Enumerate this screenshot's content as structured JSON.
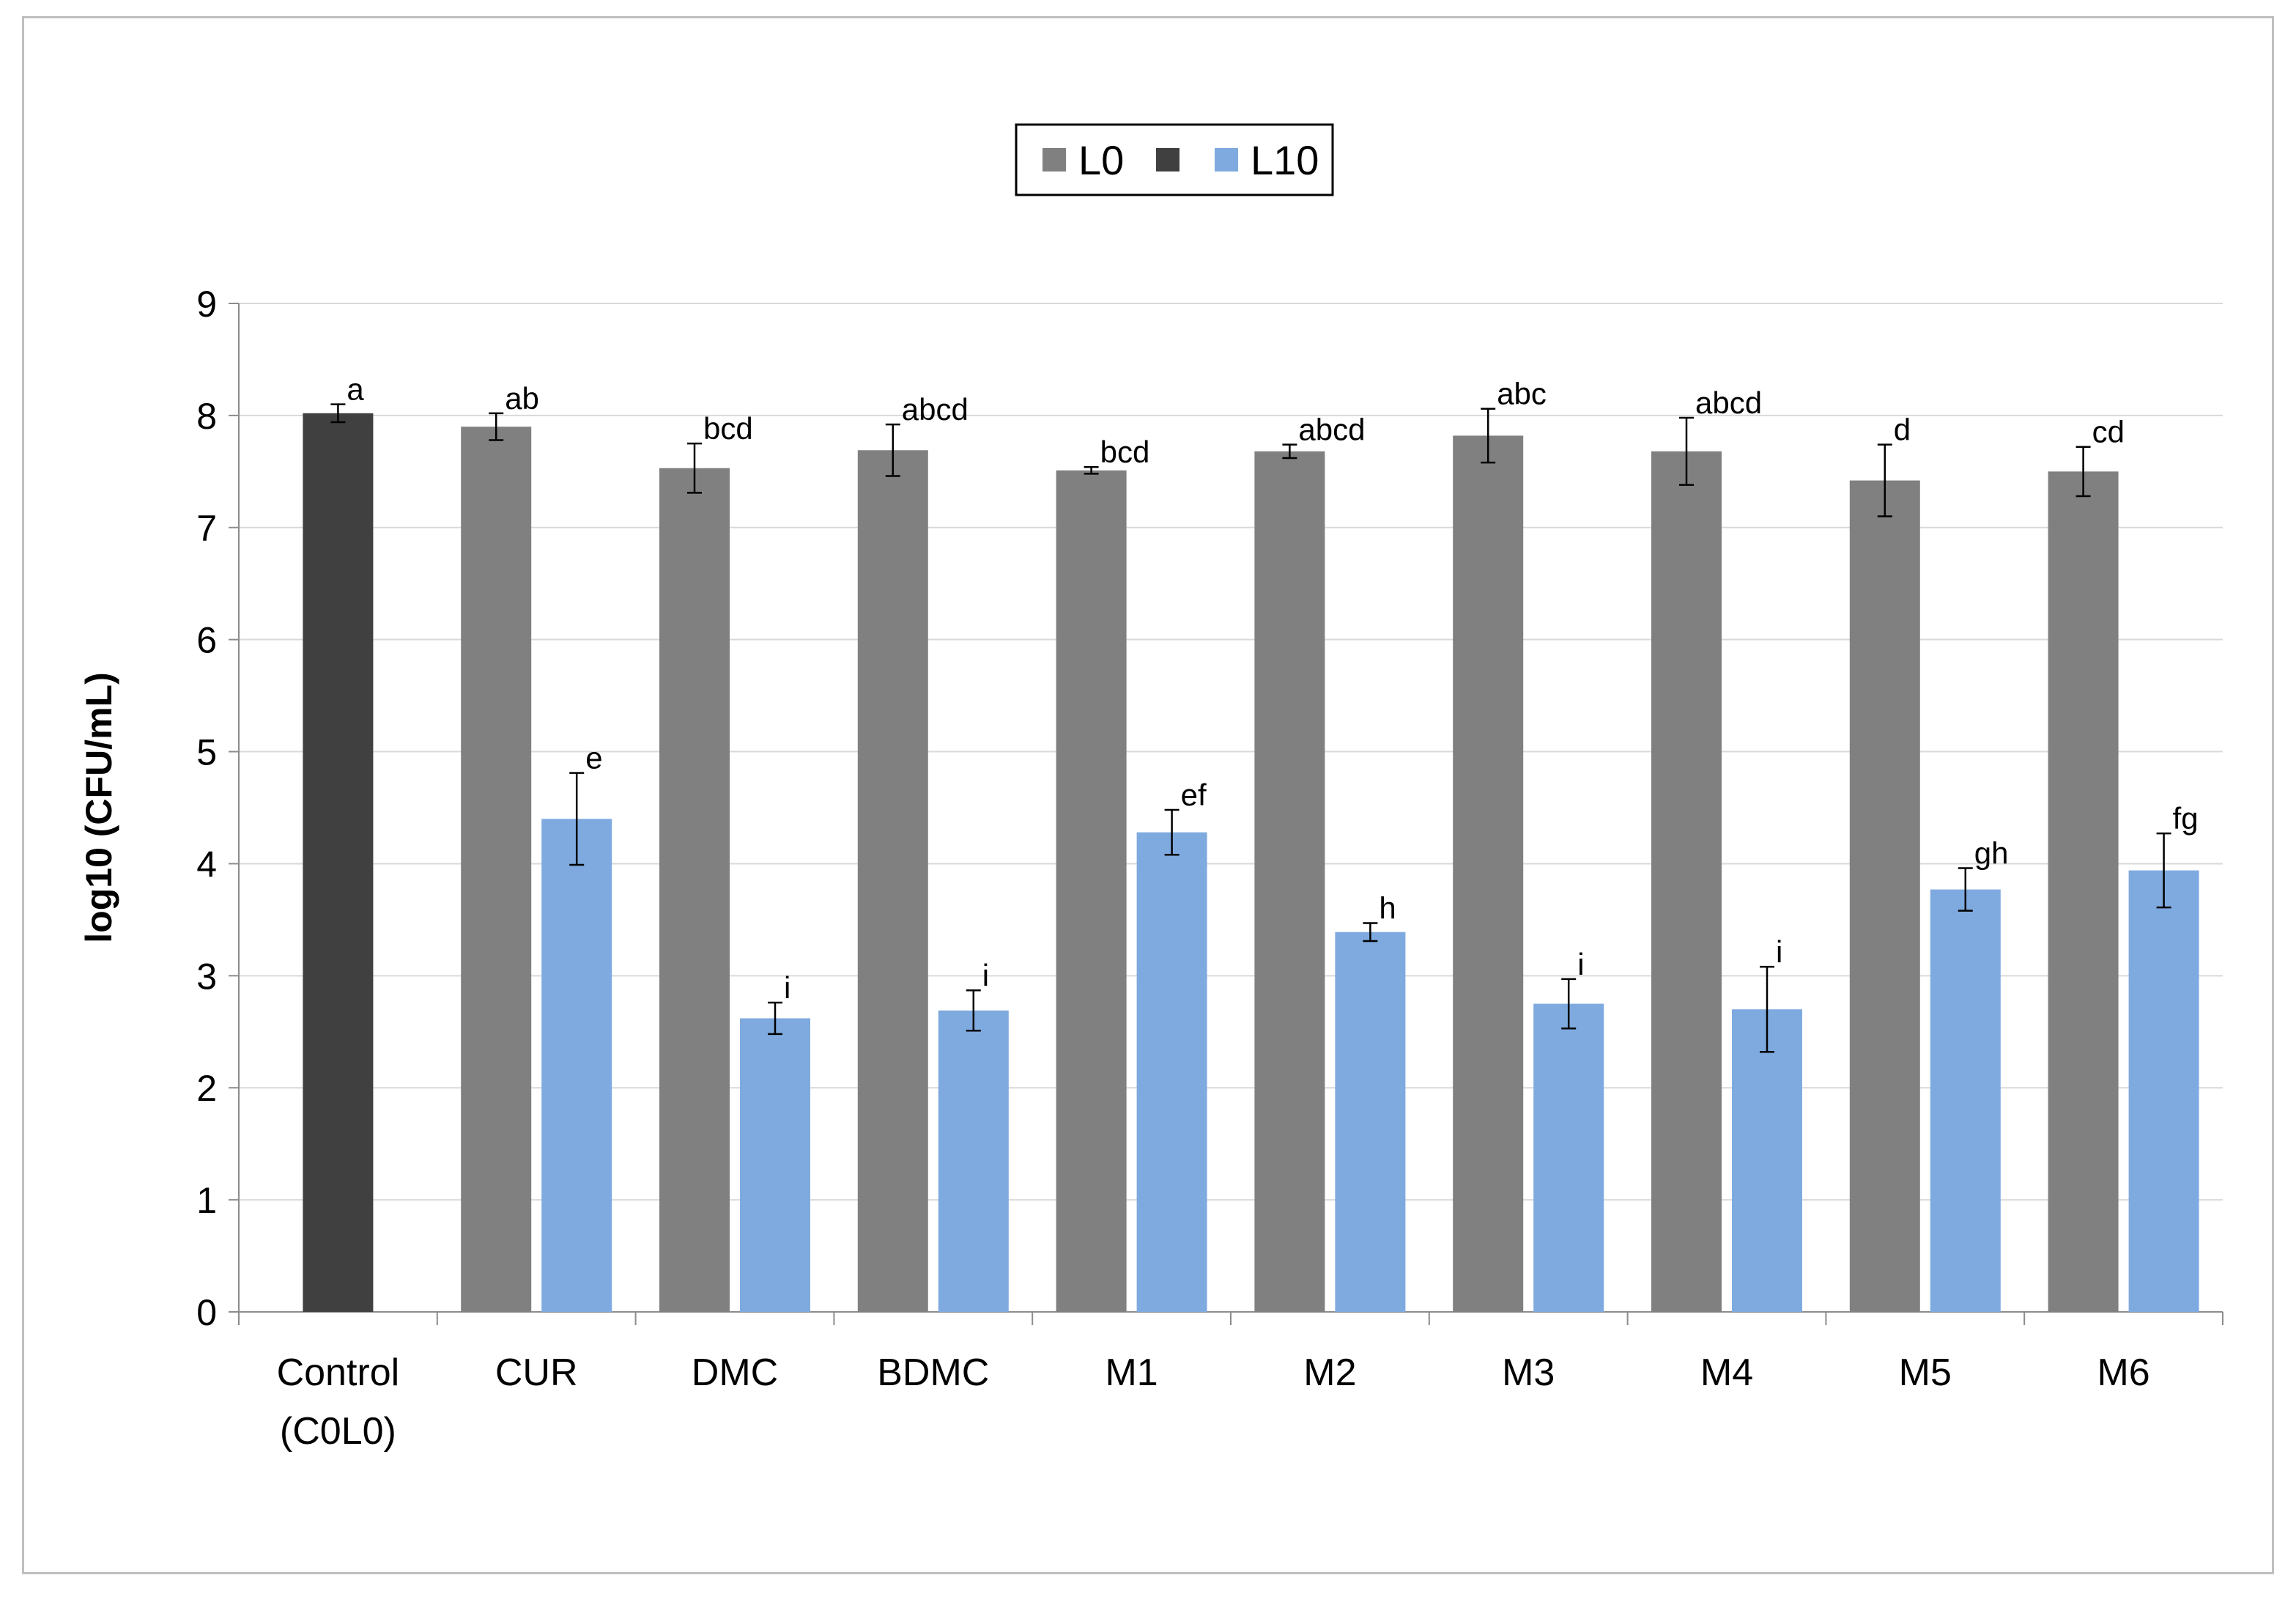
{
  "chart_data": {
    "type": "bar",
    "title": "",
    "xlabel": "",
    "ylabel": "log10 (CFU/mL)",
    "ylim": [
      0,
      9
    ],
    "yticks": [
      0,
      1,
      2,
      3,
      4,
      5,
      6,
      7,
      8,
      9
    ],
    "grid": true,
    "legend_position": "top-center",
    "legend": [
      {
        "label": "L0",
        "color": "#808080"
      },
      {
        "label": "",
        "color": "#404040"
      },
      {
        "label": "L10",
        "color": "#7faadf"
      }
    ],
    "categories": [
      [
        "Control",
        "(C0L0)"
      ],
      [
        "CUR"
      ],
      [
        "DMC"
      ],
      [
        "BDMC"
      ],
      [
        "M1"
      ],
      [
        "M2"
      ],
      [
        "M3"
      ],
      [
        "M4"
      ],
      [
        "M5"
      ],
      [
        "M6"
      ]
    ],
    "series": [
      {
        "name": "L0",
        "color": "#808080",
        "values": [
          null,
          7.9,
          7.53,
          7.69,
          7.51,
          7.68,
          7.82,
          7.68,
          7.42,
          7.5
        ],
        "errors": [
          null,
          0.12,
          0.22,
          0.23,
          0.03,
          0.06,
          0.24,
          0.3,
          0.32,
          0.22
        ],
        "labels": [
          null,
          "ab",
          "bcd",
          "abcd",
          "bcd",
          "abcd",
          "abc",
          "abcd",
          "d",
          "cd"
        ]
      },
      {
        "name": "",
        "color": "#404040",
        "values": [
          8.02,
          null,
          null,
          null,
          null,
          null,
          null,
          null,
          null,
          null
        ],
        "errors": [
          0.08,
          null,
          null,
          null,
          null,
          null,
          null,
          null,
          null,
          null
        ],
        "labels": [
          "a",
          null,
          null,
          null,
          null,
          null,
          null,
          null,
          null,
          null
        ]
      },
      {
        "name": "L10",
        "color": "#7faadf",
        "values": [
          null,
          4.4,
          2.62,
          2.69,
          4.28,
          3.39,
          2.75,
          2.7,
          3.77,
          3.94
        ],
        "errors": [
          null,
          0.41,
          0.14,
          0.18,
          0.2,
          0.08,
          0.22,
          0.38,
          0.19,
          0.33
        ],
        "labels": [
          null,
          "e",
          "i",
          "i",
          "ef",
          "h",
          "i",
          "i",
          "gh",
          "fg"
        ]
      }
    ]
  }
}
